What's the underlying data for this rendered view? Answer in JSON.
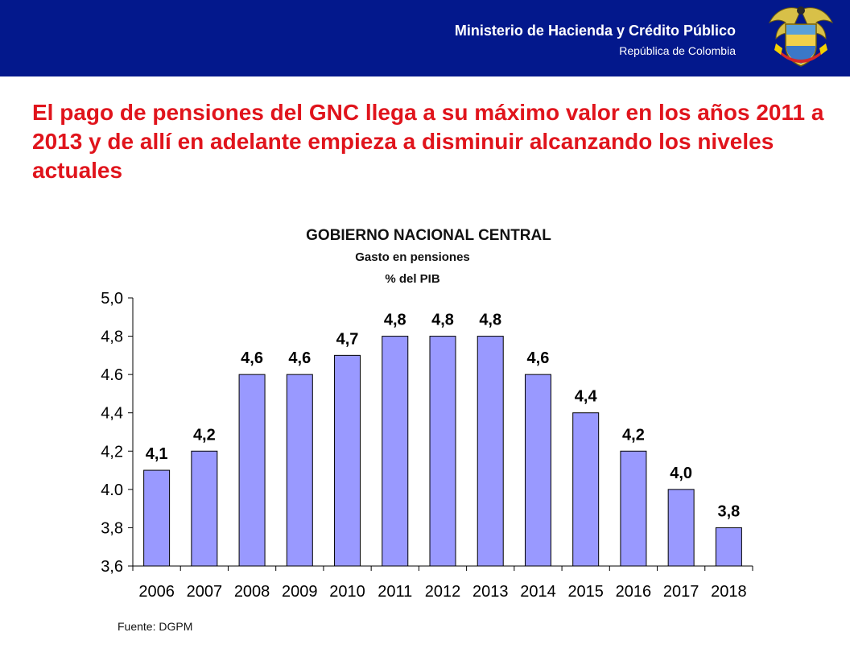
{
  "header": {
    "ministry": "Ministerio de Hacienda y Crédito Público",
    "republic": "República de Colombia",
    "background_color": "#03188c",
    "seal_icon": "colombia-coat-of-arms-icon"
  },
  "headline": "El pago de pensiones del GNC llega a su máximo valor en los años 2011 a 2013 y de allí en adelante empieza a disminuir alcanzando los niveles actuales",
  "source": "Fuente: DGPM",
  "chart_data": {
    "type": "bar",
    "title": "GOBIERNO NACIONAL CENTRAL",
    "subtitle": "Gasto en pensiones",
    "unit": "% del PIB",
    "categories": [
      "2006",
      "2007",
      "2008",
      "2009",
      "2010",
      "2011",
      "2012",
      "2013",
      "2014",
      "2015",
      "2016",
      "2017",
      "2018"
    ],
    "values": [
      4.1,
      4.2,
      4.6,
      4.6,
      4.7,
      4.8,
      4.8,
      4.8,
      4.6,
      4.4,
      4.2,
      4.0,
      3.8
    ],
    "data_labels": [
      "4,1",
      "4,2",
      "4,6",
      "4,6",
      "4,7",
      "4,8",
      "4,8",
      "4,8",
      "4,6",
      "4,4",
      "4,2",
      "4,0",
      "3,8"
    ],
    "ylim": [
      3.6,
      5.0
    ],
    "yticks": [
      3.6,
      3.8,
      4.0,
      4.2,
      4.4,
      4.6,
      4.8,
      5.0
    ],
    "ytick_labels": [
      "3,6",
      "3,8",
      "4.0",
      "4,2",
      "4,4",
      "4.6",
      "4,8",
      "5,0"
    ],
    "bar_color": "#9999ff",
    "grid": false,
    "legend": "none"
  }
}
